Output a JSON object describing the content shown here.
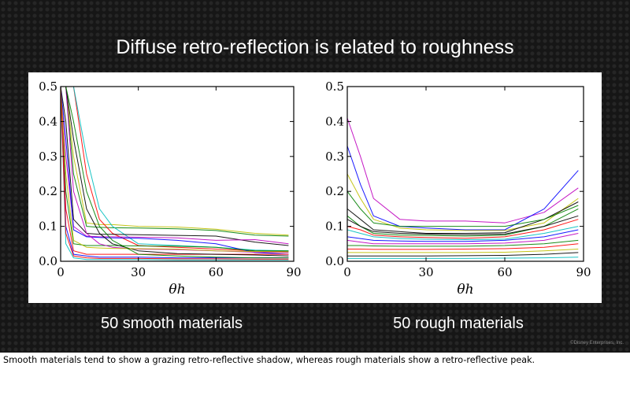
{
  "slide": {
    "title": "Diffuse retro-reflection is related to roughness",
    "left_label": "50 smooth materials",
    "right_label": "50 rough materials",
    "copyright": "©Disney Enterprises, Inc.",
    "caption": "Smooth materials tend to show a grazing retro-reflective shadow, whereas rough materials show a retro-reflective peak."
  },
  "colors": {
    "b": "#0000ff",
    "g": "#008000",
    "r": "#ff0000",
    "c": "#00bfbf",
    "m": "#bf00bf",
    "y": "#bfbf00",
    "k": "#000000"
  },
  "chart_data": [
    {
      "type": "line",
      "title": "50 smooth materials",
      "xlabel": "θh",
      "ylabel": "",
      "xlim": [
        0,
        90
      ],
      "ylim": [
        0,
        0.5
      ],
      "xticks": [
        "0",
        "30",
        "60",
        "90"
      ],
      "yticks": [
        "0.0",
        "0.1",
        "0.2",
        "0.3",
        "0.4",
        "0.5"
      ],
      "x": [
        0,
        2,
        5,
        10,
        15,
        20,
        30,
        45,
        60,
        75,
        88
      ],
      "series": [
        {
          "color": "y",
          "values": [
            0.5,
            0.5,
            0.3,
            0.11,
            0.105,
            0.105,
            0.1,
            0.098,
            0.092,
            0.08,
            0.075
          ]
        },
        {
          "color": "g",
          "values": [
            0.5,
            0.5,
            0.25,
            0.1,
            0.097,
            0.096,
            0.095,
            0.093,
            0.088,
            0.075,
            0.072
          ]
        },
        {
          "color": "r",
          "values": [
            0.5,
            0.5,
            0.5,
            0.25,
            0.12,
            0.08,
            0.045,
            0.04,
            0.035,
            0.03,
            0.028
          ]
        },
        {
          "color": "c",
          "values": [
            0.5,
            0.5,
            0.5,
            0.3,
            0.15,
            0.1,
            0.05,
            0.045,
            0.04,
            0.032,
            0.03
          ]
        },
        {
          "color": "k",
          "values": [
            0.5,
            0.4,
            0.12,
            0.08,
            0.077,
            0.077,
            0.076,
            0.074,
            0.072,
            0.055,
            0.045
          ]
        },
        {
          "color": "m",
          "values": [
            0.5,
            0.3,
            0.1,
            0.072,
            0.07,
            0.07,
            0.069,
            0.067,
            0.06,
            0.062,
            0.05
          ]
        },
        {
          "color": "b",
          "values": [
            0.5,
            0.35,
            0.09,
            0.07,
            0.068,
            0.067,
            0.066,
            0.06,
            0.05,
            0.025,
            0.02
          ]
        },
        {
          "color": "g",
          "values": [
            0.5,
            0.2,
            0.05,
            0.045,
            0.045,
            0.045,
            0.044,
            0.043,
            0.04,
            0.03,
            0.03
          ]
        },
        {
          "color": "r",
          "values": [
            0.5,
            0.15,
            0.03,
            0.02,
            0.02,
            0.02,
            0.02,
            0.02,
            0.02,
            0.02,
            0.02
          ]
        },
        {
          "color": "b",
          "values": [
            0.5,
            0.1,
            0.02,
            0.015,
            0.012,
            0.012,
            0.012,
            0.01,
            0.01,
            0.01,
            0.01
          ]
        },
        {
          "color": "m",
          "values": [
            0.5,
            0.5,
            0.2,
            0.08,
            0.05,
            0.04,
            0.035,
            0.033,
            0.03,
            0.026,
            0.025
          ]
        },
        {
          "color": "c",
          "values": [
            0.5,
            0.05,
            0.01,
            0.005,
            0.005,
            0.005,
            0.005,
            0.004,
            0.004,
            0.004,
            0.004
          ]
        },
        {
          "color": "k",
          "values": [
            0.5,
            0.5,
            0.35,
            0.15,
            0.08,
            0.05,
            0.03,
            0.022,
            0.02,
            0.018,
            0.015
          ]
        },
        {
          "color": "y",
          "values": [
            0.5,
            0.25,
            0.06,
            0.04,
            0.038,
            0.037,
            0.036,
            0.035,
            0.03,
            0.028,
            0.027
          ]
        },
        {
          "color": "g",
          "values": [
            0.5,
            0.5,
            0.4,
            0.2,
            0.1,
            0.06,
            0.02,
            0.015,
            0.012,
            0.01,
            0.01
          ]
        },
        {
          "color": "r",
          "values": [
            0.5,
            0.08,
            0.015,
            0.01,
            0.008,
            0.008,
            0.008,
            0.007,
            0.007,
            0.006,
            0.006
          ]
        }
      ]
    },
    {
      "type": "line",
      "title": "50 rough materials",
      "xlabel": "θh",
      "ylabel": "",
      "xlim": [
        0,
        90
      ],
      "ylim": [
        0,
        0.5
      ],
      "xticks": [
        "0",
        "30",
        "60",
        "90"
      ],
      "yticks": [
        "0.0",
        "0.1",
        "0.2",
        "0.3",
        "0.4",
        "0.5"
      ],
      "x": [
        0,
        5,
        10,
        20,
        30,
        45,
        60,
        75,
        88
      ],
      "series": [
        {
          "color": "m",
          "values": [
            0.41,
            0.3,
            0.18,
            0.12,
            0.115,
            0.115,
            0.11,
            0.14,
            0.21
          ]
        },
        {
          "color": "b",
          "values": [
            0.33,
            0.22,
            0.13,
            0.1,
            0.095,
            0.09,
            0.09,
            0.15,
            0.26
          ]
        },
        {
          "color": "y",
          "values": [
            0.25,
            0.18,
            0.12,
            0.095,
            0.09,
            0.088,
            0.088,
            0.11,
            0.18
          ]
        },
        {
          "color": "k",
          "values": [
            0.15,
            0.12,
            0.09,
            0.085,
            0.08,
            0.08,
            0.082,
            0.12,
            0.17
          ]
        },
        {
          "color": "g",
          "values": [
            0.13,
            0.1,
            0.08,
            0.075,
            0.074,
            0.072,
            0.075,
            0.1,
            0.15
          ]
        },
        {
          "color": "r",
          "values": [
            0.1,
            0.09,
            0.075,
            0.07,
            0.068,
            0.066,
            0.07,
            0.09,
            0.12
          ]
        },
        {
          "color": "c",
          "values": [
            0.09,
            0.08,
            0.07,
            0.065,
            0.063,
            0.062,
            0.063,
            0.08,
            0.1
          ]
        },
        {
          "color": "b",
          "values": [
            0.07,
            0.065,
            0.06,
            0.058,
            0.057,
            0.057,
            0.06,
            0.07,
            0.09
          ]
        },
        {
          "color": "m",
          "values": [
            0.06,
            0.055,
            0.05,
            0.05,
            0.05,
            0.05,
            0.052,
            0.06,
            0.08
          ]
        },
        {
          "color": "g",
          "values": [
            0.045,
            0.045,
            0.044,
            0.043,
            0.043,
            0.043,
            0.045,
            0.05,
            0.06
          ]
        },
        {
          "color": "r",
          "values": [
            0.035,
            0.035,
            0.034,
            0.034,
            0.034,
            0.035,
            0.036,
            0.04,
            0.05
          ]
        },
        {
          "color": "y",
          "values": [
            0.025,
            0.025,
            0.025,
            0.025,
            0.025,
            0.025,
            0.026,
            0.03,
            0.035
          ]
        },
        {
          "color": "k",
          "values": [
            0.015,
            0.015,
            0.015,
            0.015,
            0.015,
            0.016,
            0.017,
            0.02,
            0.025
          ]
        },
        {
          "color": "c",
          "values": [
            0.008,
            0.008,
            0.008,
            0.008,
            0.008,
            0.008,
            0.009,
            0.01,
            0.012
          ]
        },
        {
          "color": "g",
          "values": [
            0.2,
            0.15,
            0.11,
            0.1,
            0.1,
            0.1,
            0.1,
            0.12,
            0.16
          ]
        },
        {
          "color": "k",
          "values": [
            0.12,
            0.1,
            0.085,
            0.08,
            0.078,
            0.076,
            0.078,
            0.1,
            0.13
          ]
        }
      ]
    }
  ]
}
